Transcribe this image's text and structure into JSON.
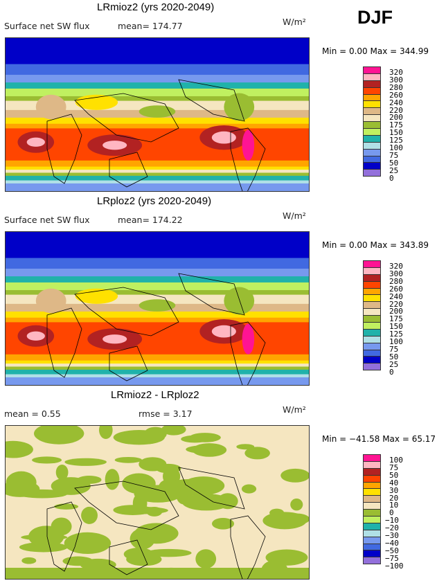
{
  "season": "DJF",
  "palette": [
    "#ff1493",
    "#ffb6c1",
    "#b22222",
    "#ff4500",
    "#ffa500",
    "#ffe100",
    "#deb887",
    "#f5e6c0",
    "#9abd32",
    "#c0f060",
    "#20b2aa",
    "#b0e0e6",
    "#7799ee",
    "#4169e1",
    "#0000c8",
    "#9370db"
  ],
  "panels": [
    {
      "title": "LRmioz2 (yrs 2020-2049)",
      "variable": "Surface net SW flux",
      "mean": "mean= 174.77",
      "units": "W/m²",
      "minmax": "Min =    0.00  Max = 344.99",
      "levels": [
        "320",
        "300",
        "280",
        "260",
        "240",
        "220",
        "200",
        "175",
        "150",
        "125",
        "100",
        "75",
        "50",
        "25",
        "0"
      ]
    },
    {
      "title": "LRploz2 (yrs 2020-2049)",
      "variable": "Surface net SW flux",
      "mean": "mean= 174.22",
      "units": "W/m²",
      "minmax": "Min =    0.00  Max = 343.89",
      "levels": [
        "320",
        "300",
        "280",
        "260",
        "240",
        "220",
        "200",
        "175",
        "150",
        "125",
        "100",
        "75",
        "50",
        "25",
        "0"
      ]
    },
    {
      "title": "LRmioz2 - LRploz2",
      "variable": "mean =   0.55",
      "mean": "rmse =   3.17",
      "units": "W/m²",
      "minmax": "Min = −41.58  Max =  65.17",
      "levels": [
        "100",
        "75",
        "50",
        "40",
        "30",
        "20",
        "10",
        "0",
        "−10",
        "−20",
        "−30",
        "−40",
        "−50",
        "−75",
        "−100"
      ]
    }
  ]
}
